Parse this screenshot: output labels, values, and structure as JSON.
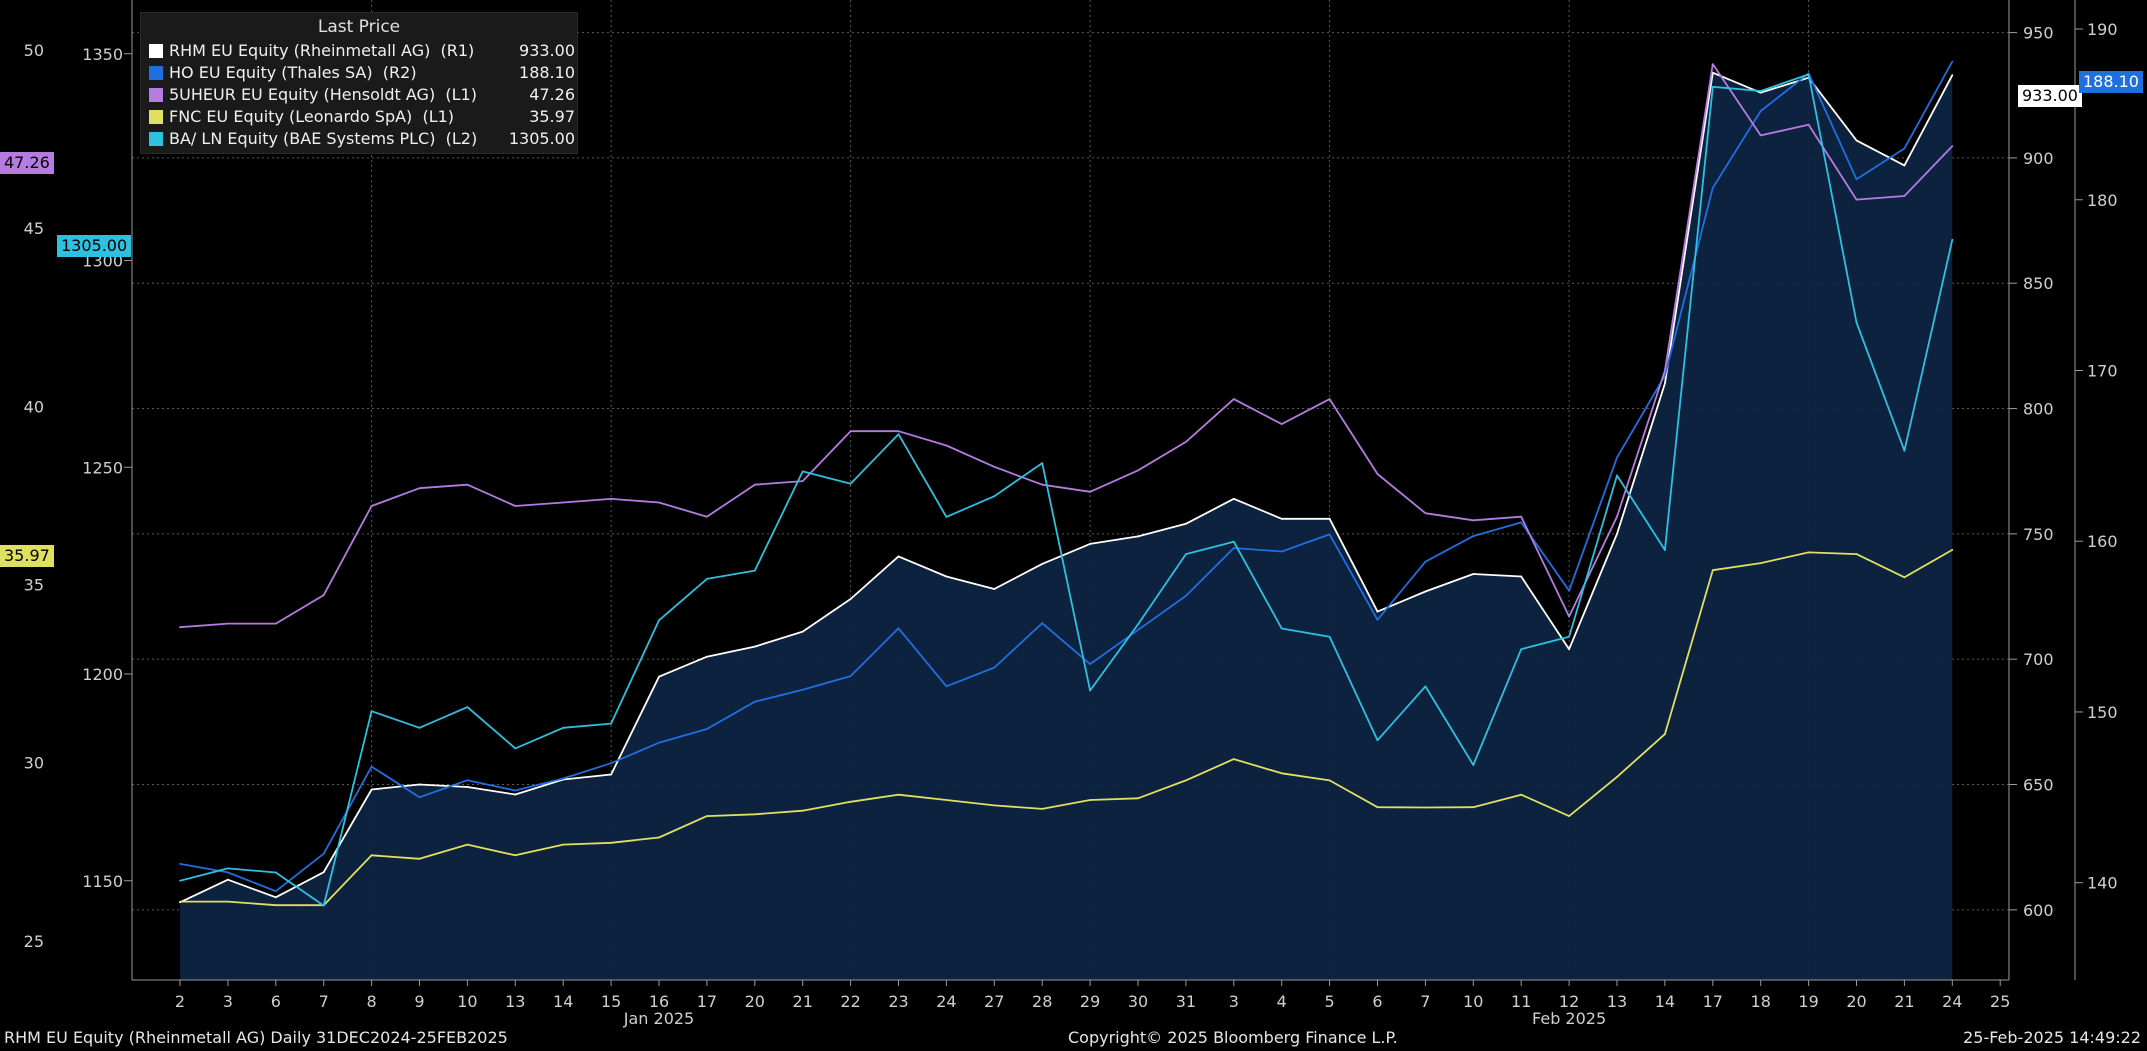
{
  "legend": {
    "title": "Last Price",
    "rows": [
      {
        "name": "RHM EU Equity (Rheinmetall AG)  (R1)",
        "value": "933.00",
        "color": "#ffffff"
      },
      {
        "name": "HO EU Equity (Thales SA)  (R2)",
        "value": "188.10",
        "color": "#1f6fe0"
      },
      {
        "name": "5UHEUR EU Equity (Hensoldt AG)  (L1)",
        "value": "47.26",
        "color": "#b57be0"
      },
      {
        "name": "FNC EU Equity (Leonardo SpA)  (L1)",
        "value": "35.97",
        "color": "#e0e060"
      },
      {
        "name": "BA/ LN Equity (BAE Systems PLC)  (L2)",
        "value": "1305.00",
        "color": "#2ec0e0"
      }
    ]
  },
  "tags": {
    "l1_hensoldt": "47.26",
    "l1_leonardo": "35.97",
    "l2_bae": "1305.00",
    "r1_rheinmetall": "933.00",
    "r2_thales": "188.10"
  },
  "footer": {
    "left": "RHM EU Equity (Rheinmetall AG)  Daily 31DEC2024-25FEB2025",
    "center": "Copyright© 2025 Bloomberg Finance L.P.",
    "right": "25-Feb-2025 14:49:22"
  },
  "chart_data": {
    "type": "line",
    "x": [
      "2",
      "3",
      "6",
      "7",
      "8",
      "9",
      "10",
      "13",
      "14",
      "15",
      "16",
      "17",
      "20",
      "21",
      "22",
      "23",
      "24",
      "27",
      "28",
      "29",
      "30",
      "31",
      "3",
      "4",
      "5",
      "6",
      "7",
      "10",
      "11",
      "12",
      "13",
      "14",
      "17",
      "18",
      "19",
      "20",
      "21",
      "24",
      "25"
    ],
    "month_labels": [
      {
        "text": "Jan 2025",
        "at": "16"
      },
      {
        "text": "Feb 2025",
        "at": "12"
      }
    ],
    "axes": {
      "L1": {
        "ticks": [
          25,
          30,
          35,
          40,
          45,
          50
        ],
        "range": [
          23.9,
          51.4
        ]
      },
      "L2": {
        "ticks": [
          1150,
          1200,
          1250,
          1300,
          1350
        ],
        "range": [
          1126,
          1363
        ]
      },
      "R1": {
        "ticks": [
          600,
          650,
          700,
          750,
          800,
          850,
          900,
          950
        ],
        "range": [
          572,
          963
        ]
      },
      "R2": {
        "ticks": [
          140,
          150,
          160,
          170,
          180,
          190
        ],
        "range": [
          134.3,
          191.7
        ]
      }
    },
    "series": [
      {
        "name": "RHM EU Equity (Rheinmetall AG)",
        "axis": "R1",
        "color": "#ffffff",
        "filled": true,
        "values": [
          603,
          612,
          605,
          615,
          648,
          650,
          649,
          646,
          652,
          654,
          693,
          701,
          705,
          711,
          724,
          741,
          733,
          728,
          738,
          746,
          749,
          754,
          764,
          756,
          756,
          719,
          727,
          734,
          733,
          704,
          750,
          810,
          934,
          926,
          932,
          907,
          897,
          933,
          null
        ]
      },
      {
        "name": "HO EU Equity (Thales SA)",
        "axis": "R2",
        "color": "#1f6fe0",
        "values": [
          141.1,
          140.6,
          139.5,
          141.7,
          146.8,
          145.0,
          146.0,
          145.4,
          146.1,
          147.0,
          148.2,
          149.0,
          150.6,
          151.3,
          152.1,
          154.9,
          151.5,
          152.6,
          155.2,
          152.8,
          154.8,
          156.8,
          159.6,
          159.4,
          160.4,
          155.4,
          158.8,
          160.3,
          161.1,
          157.1,
          164.9,
          169.7,
          180.7,
          185.2,
          187.4,
          181.2,
          183.0,
          188.1,
          null
        ]
      },
      {
        "name": "5UHEUR EU Equity (Hensoldt AG)",
        "axis": "L1",
        "color": "#b57be0",
        "values": [
          33.8,
          33.9,
          33.9,
          34.7,
          37.2,
          37.7,
          37.8,
          37.2,
          37.3,
          37.4,
          37.3,
          36.9,
          37.8,
          37.9,
          39.3,
          39.3,
          38.9,
          38.3,
          37.8,
          37.6,
          38.2,
          39.0,
          40.2,
          39.5,
          40.2,
          38.1,
          37.0,
          36.8,
          36.9,
          34.1,
          36.9,
          41.0,
          49.6,
          47.6,
          47.9,
          45.8,
          45.9,
          47.3,
          null
        ]
      },
      {
        "name": "FNC EU Equity (Leonardo SpA)",
        "axis": "L1",
        "color": "#e0e060",
        "values": [
          26.1,
          26.1,
          26.0,
          26.0,
          27.4,
          27.3,
          27.7,
          27.4,
          27.7,
          27.75,
          27.9,
          28.5,
          28.55,
          28.65,
          28.9,
          29.1,
          28.95,
          28.8,
          28.7,
          28.95,
          29.0,
          29.5,
          30.1,
          29.7,
          29.5,
          28.75,
          28.74,
          28.75,
          29.1,
          28.5,
          29.6,
          30.8,
          35.4,
          35.6,
          35.9,
          35.85,
          35.2,
          35.97,
          null
        ]
      },
      {
        "name": "BA/ LN Equity (BAE Systems PLC)",
        "axis": "L2",
        "color": "#2ec0e0",
        "values": [
          1150,
          1153,
          1152,
          1144,
          1191,
          1187,
          1192,
          1182,
          1187,
          1188,
          1213,
          1223,
          1225,
          1249,
          1246,
          1258,
          1238,
          1243,
          1251,
          1196,
          1212,
          1229,
          1232,
          1211,
          1209,
          1184,
          1197,
          1178,
          1206,
          1209,
          1248,
          1230,
          1342,
          1341,
          1345,
          1285,
          1254,
          1305,
          null
        ]
      }
    ]
  }
}
